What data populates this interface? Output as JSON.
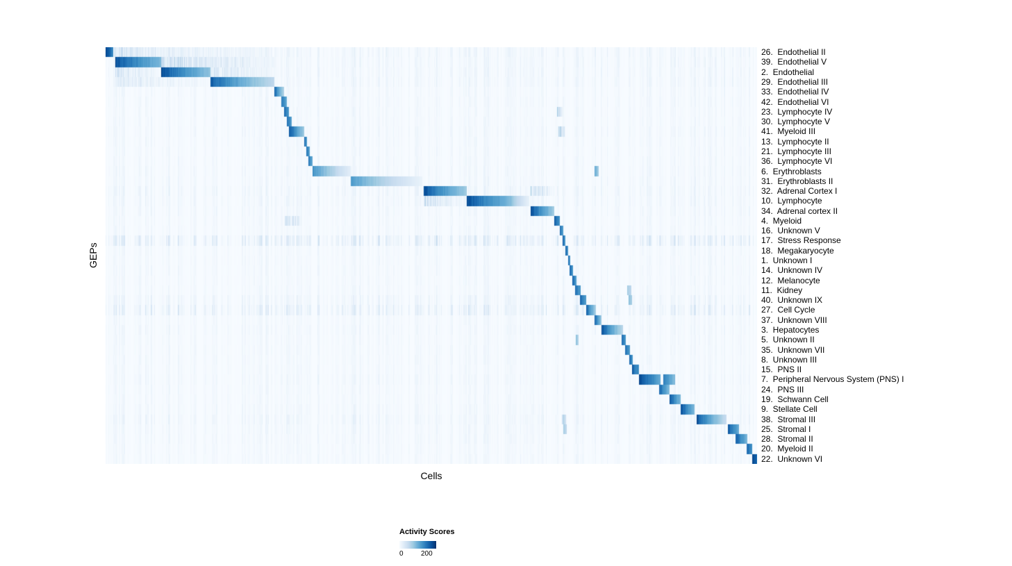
{
  "chart_data": {
    "type": "heatmap",
    "title": "",
    "xlabel": "Cells",
    "ylabel": "GEPs",
    "legend": {
      "title": "Activity Scores",
      "min": 0,
      "max": 200
    },
    "value_range": [
      0,
      200
    ],
    "colormap": {
      "name": "Blues",
      "stops": [
        "#f7fbff",
        "#deebf7",
        "#c6dbef",
        "#9ecae1",
        "#6baed6",
        "#4292c6",
        "#2171b5",
        "#08519c",
        "#08306b"
      ]
    },
    "n_rows": 42,
    "blocks_format": "[x_start_fraction, x_end_fraction, intensity_0_to_1, optional_fade]",
    "rows": [
      {
        "label": "26.  Endothelial II",
        "bg": 0.08,
        "blocks": [
          [
            0.0,
            0.011,
            1.0,
            0.3
          ],
          [
            0.011,
            0.255,
            0.2
          ]
        ]
      },
      {
        "label": "39.  Endothelial V",
        "bg": 0.07,
        "blocks": [
          [
            0.014,
            0.085,
            0.95,
            0.5
          ],
          [
            0.085,
            0.26,
            0.3
          ]
        ]
      },
      {
        "label": "2.  Endothelial",
        "bg": 0.07,
        "blocks": [
          [
            0.085,
            0.16,
            0.95,
            0.55
          ],
          [
            0.014,
            0.085,
            0.22
          ],
          [
            0.16,
            0.26,
            0.2
          ]
        ]
      },
      {
        "label": "29.  Endothelial III",
        "bg": 0.07,
        "blocks": [
          [
            0.16,
            0.259,
            0.9,
            0.7
          ],
          [
            0.014,
            0.16,
            0.16
          ]
        ]
      },
      {
        "label": "33.  Endothelial IV",
        "bg": 0.05,
        "blocks": [
          [
            0.259,
            0.273,
            0.85
          ]
        ]
      },
      {
        "label": "42.  Endothelial VI",
        "bg": 0.05,
        "blocks": [
          [
            0.269,
            0.278,
            0.8
          ]
        ]
      },
      {
        "label": "23.  Lymphocyte IV",
        "bg": 0.05,
        "blocks": [
          [
            0.273,
            0.281,
            0.85
          ],
          [
            0.692,
            0.702,
            0.3
          ]
        ]
      },
      {
        "label": "30.  Lymphocyte V",
        "bg": 0.05,
        "blocks": [
          [
            0.278,
            0.285,
            0.85
          ]
        ]
      },
      {
        "label": "41.  Myeloid III",
        "bg": 0.06,
        "blocks": [
          [
            0.281,
            0.304,
            0.95
          ],
          [
            0.695,
            0.705,
            0.35
          ]
        ]
      },
      {
        "label": "13.  Lymphocyte II",
        "bg": 0.05,
        "blocks": [
          [
            0.304,
            0.309,
            0.85
          ]
        ]
      },
      {
        "label": "21.  Lymphocyte III",
        "bg": 0.05,
        "blocks": [
          [
            0.308,
            0.313,
            0.8
          ]
        ]
      },
      {
        "label": "36.  Lymphocyte VI",
        "bg": 0.05,
        "blocks": [
          [
            0.311,
            0.317,
            0.8
          ]
        ]
      },
      {
        "label": "6.  Erythroblasts",
        "bg": 0.06,
        "blocks": [
          [
            0.317,
            0.376,
            0.7,
            0.85
          ],
          [
            0.75,
            0.756,
            0.55
          ]
        ]
      },
      {
        "label": "31.  Erythroblasts II",
        "bg": 0.06,
        "blocks": [
          [
            0.376,
            0.486,
            0.65,
            0.9
          ]
        ]
      },
      {
        "label": "32.  Adrenal Cortex I",
        "bg": 0.08,
        "blocks": [
          [
            0.488,
            0.554,
            0.95,
            0.6
          ],
          [
            0.652,
            0.688,
            0.3
          ]
        ]
      },
      {
        "label": "10.  Lymphocyte",
        "bg": 0.07,
        "blocks": [
          [
            0.554,
            0.62,
            0.95,
            0.5
          ],
          [
            0.62,
            0.65,
            0.5
          ],
          [
            0.488,
            0.554,
            0.25
          ]
        ]
      },
      {
        "label": "34.  Adrenal cortex II",
        "bg": 0.06,
        "blocks": [
          [
            0.652,
            0.688,
            0.95,
            0.6
          ]
        ]
      },
      {
        "label": "4.  Myeloid",
        "bg": 0.05,
        "blocks": [
          [
            0.688,
            0.697,
            0.9
          ],
          [
            0.275,
            0.3,
            0.25
          ]
        ]
      },
      {
        "label": "16.  Unknown V",
        "bg": 0.05,
        "blocks": [
          [
            0.697,
            0.702,
            0.85
          ]
        ]
      },
      {
        "label": "17.  Stress Response",
        "bg": 0.18,
        "blocks": [
          [
            0.701,
            0.705,
            0.9
          ]
        ]
      },
      {
        "label": "18.  Megakaryocyte",
        "bg": 0.05,
        "blocks": [
          [
            0.705,
            0.709,
            0.9
          ]
        ]
      },
      {
        "label": "1.  Unknown I",
        "bg": 0.05,
        "blocks": [
          [
            0.709,
            0.713,
            0.85
          ]
        ]
      },
      {
        "label": "14.  Unknown IV",
        "bg": 0.05,
        "blocks": [
          [
            0.712,
            0.717,
            0.85
          ]
        ]
      },
      {
        "label": "12.  Melanocyte",
        "bg": 0.05,
        "blocks": [
          [
            0.716,
            0.722,
            0.85
          ]
        ]
      },
      {
        "label": "11.  Kidney",
        "bg": 0.05,
        "blocks": [
          [
            0.72,
            0.729,
            0.85
          ],
          [
            0.8,
            0.806,
            0.4
          ]
        ]
      },
      {
        "label": "40.  Unknown IX",
        "bg": 0.09,
        "blocks": [
          [
            0.728,
            0.737,
            0.85
          ],
          [
            0.802,
            0.808,
            0.5
          ]
        ]
      },
      {
        "label": "27.  Cell Cycle",
        "bg": 0.15,
        "blocks": [
          [
            0.737,
            0.752,
            0.9
          ]
        ]
      },
      {
        "label": "37.  Unknown VIII",
        "bg": 0.05,
        "blocks": [
          [
            0.75,
            0.761,
            0.9
          ]
        ]
      },
      {
        "label": "3.  Hepatocytes",
        "bg": 0.06,
        "blocks": [
          [
            0.761,
            0.794,
            0.95,
            0.7
          ]
        ]
      },
      {
        "label": "5.  Unknown II",
        "bg": 0.05,
        "blocks": [
          [
            0.792,
            0.798,
            0.85
          ],
          [
            0.721,
            0.726,
            0.45
          ]
        ]
      },
      {
        "label": "35.  Unknown VII",
        "bg": 0.05,
        "blocks": [
          [
            0.797,
            0.804,
            0.85
          ]
        ]
      },
      {
        "label": "8.  Unknown III",
        "bg": 0.05,
        "blocks": [
          [
            0.803,
            0.809,
            0.85
          ]
        ]
      },
      {
        "label": "15.  PNS II",
        "bg": 0.05,
        "blocks": [
          [
            0.808,
            0.818,
            0.9
          ]
        ]
      },
      {
        "label": "7.  Peripheral Nervous System (PNS) I",
        "bg": 0.06,
        "blocks": [
          [
            0.818,
            0.851,
            1.0,
            0.45
          ],
          [
            0.856,
            0.874,
            0.75,
            0.4
          ]
        ]
      },
      {
        "label": "24.  PNS III",
        "bg": 0.05,
        "blocks": [
          [
            0.849,
            0.865,
            0.9,
            0.5
          ]
        ]
      },
      {
        "label": "19.  Schwann Cell",
        "bg": 0.05,
        "blocks": [
          [
            0.865,
            0.882,
            0.95,
            0.5
          ]
        ]
      },
      {
        "label": "9.  Stellate Cell",
        "bg": 0.06,
        "blocks": [
          [
            0.882,
            0.904,
            0.95,
            0.5
          ]
        ]
      },
      {
        "label": "38.  Stromal III",
        "bg": 0.08,
        "blocks": [
          [
            0.907,
            0.953,
            0.95,
            0.75
          ],
          [
            0.7,
            0.706,
            0.35
          ]
        ]
      },
      {
        "label": "25.  Stromal I",
        "bg": 0.06,
        "blocks": [
          [
            0.955,
            0.972,
            0.9,
            0.4
          ],
          [
            0.702,
            0.707,
            0.4
          ]
        ]
      },
      {
        "label": "28.  Stromal II",
        "bg": 0.06,
        "blocks": [
          [
            0.966,
            0.985,
            0.9,
            0.45
          ]
        ]
      },
      {
        "label": "20.  Myeloid II",
        "bg": 0.05,
        "blocks": [
          [
            0.983,
            0.992,
            0.9
          ]
        ]
      },
      {
        "label": "22.  Unknown VI",
        "bg": 0.05,
        "blocks": [
          [
            0.992,
            1.0,
            1.0,
            0.2
          ]
        ]
      }
    ]
  }
}
